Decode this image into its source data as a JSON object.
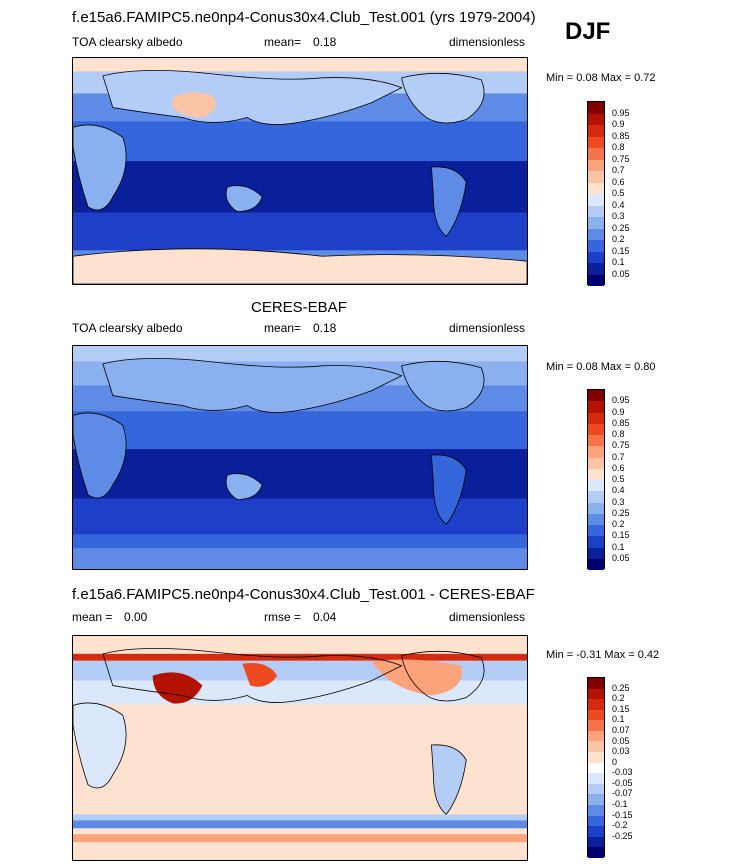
{
  "season": "DJF",
  "panels": [
    {
      "id": "model",
      "title": "f.e15a6.FAMIPC5.ne0np4-Conus30x4.Club_Test.001 (yrs 1979-2004)",
      "left_label": "TOA clearsky albedo",
      "mean_label": "mean=",
      "mean_value": "0.18",
      "units": "dimensionless",
      "min_label": "Min =",
      "min_value": "0.08",
      "max_label": "Max =",
      "max_value": "0.72"
    },
    {
      "id": "obs",
      "title": "CERES-EBAF",
      "left_label": "TOA clearsky albedo",
      "mean_label": "mean=",
      "mean_value": "0.18",
      "units": "dimensionless",
      "min_label": "Min =",
      "min_value": "0.08",
      "max_label": "Max =",
      "max_value": "0.80"
    },
    {
      "id": "diff",
      "title": "f.e15a6.FAMIPC5.ne0np4-Conus30x4.Club_Test.001 - CERES-EBAF",
      "mean_label": "mean =",
      "mean_value": "0.00",
      "rmse_label": "rmse =",
      "rmse_value": "0.04",
      "units": "dimensionless",
      "min_label": "Min =",
      "min_value": "-0.31",
      "max_label": "Max =",
      "max_value": "0.42"
    }
  ],
  "chart_data": [
    {
      "type": "heatmap",
      "title": "f.e15a6.FAMIPC5.ne0np4-Conus30x4.Club_Test.001 (yrs 1979-2004)",
      "variable": "TOA clearsky albedo",
      "units": "dimensionless",
      "mean": 0.18,
      "min": 0.08,
      "max": 0.72,
      "colorbar_levels": [
        "0.95",
        "0.9",
        "0.85",
        "0.8",
        "0.75",
        "0.7",
        "0.6",
        "0.5",
        "0.4",
        "0.3",
        "0.25",
        "0.2",
        "0.15",
        "0.1",
        "0.05"
      ],
      "colorbar_colors": [
        "#7f0000",
        "#b31200",
        "#d42a10",
        "#ee4a22",
        "#f7744a",
        "#fba37a",
        "#fbc4a4",
        "#fde2d0",
        "#dbe8fb",
        "#b4cdf6",
        "#8ab0ef",
        "#5d8be6",
        "#3566dc",
        "#1e40c8",
        "#0a1f9a",
        "#00006e"
      ]
    },
    {
      "type": "heatmap",
      "title": "CERES-EBAF",
      "variable": "TOA clearsky albedo",
      "units": "dimensionless",
      "mean": 0.18,
      "min": 0.08,
      "max": 0.8,
      "colorbar_levels": [
        "0.95",
        "0.9",
        "0.85",
        "0.8",
        "0.75",
        "0.7",
        "0.6",
        "0.5",
        "0.4",
        "0.3",
        "0.25",
        "0.2",
        "0.15",
        "0.1",
        "0.05"
      ],
      "colorbar_colors": [
        "#7f0000",
        "#b31200",
        "#d42a10",
        "#ee4a22",
        "#f7744a",
        "#fba37a",
        "#fbc4a4",
        "#fde2d0",
        "#dbe8fb",
        "#b4cdf6",
        "#8ab0ef",
        "#5d8be6",
        "#3566dc",
        "#1e40c8",
        "#0a1f9a",
        "#00006e"
      ]
    },
    {
      "type": "heatmap",
      "title": "f.e15a6.FAMIPC5.ne0np4-Conus30x4.Club_Test.001 - CERES-EBAF",
      "units": "dimensionless",
      "mean": 0.0,
      "rmse": 0.04,
      "min": -0.31,
      "max": 0.42,
      "colorbar_levels": [
        "0.25",
        "0.2",
        "0.15",
        "0.1",
        "0.07",
        "0.05",
        "0.03",
        "0",
        "-0.03",
        "-0.05",
        "-0.07",
        "-0.1",
        "-0.15",
        "-0.2",
        "-0.25"
      ],
      "colorbar_colors": [
        "#7f0000",
        "#b31200",
        "#d42a10",
        "#ee4a22",
        "#f7744a",
        "#fba37a",
        "#fbc4a4",
        "#fde2d0",
        "#ffffff",
        "#dbe8fb",
        "#b4cdf6",
        "#8ab0ef",
        "#5d8be6",
        "#3566dc",
        "#1e40c8",
        "#0a1f9a",
        "#00006e"
      ]
    }
  ]
}
